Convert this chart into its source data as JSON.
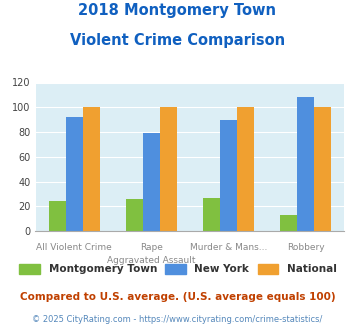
{
  "title_line1": "2018 Montgomery Town",
  "title_line2": "Violent Crime Comparison",
  "x_labels_top": [
    "",
    "Rape",
    "Murder & Mans...",
    ""
  ],
  "x_labels_bot": [
    "All Violent Crime",
    "Aggravated Assault",
    "",
    "Robbery"
  ],
  "montgomery_town": [
    24,
    26,
    27,
    13
  ],
  "new_york": [
    92,
    79,
    90,
    108
  ],
  "national": [
    100,
    100,
    100,
    100
  ],
  "colors": {
    "montgomery": "#80c040",
    "new_york": "#4f8fde",
    "national": "#f0a030"
  },
  "ylim": [
    0,
    120
  ],
  "yticks": [
    0,
    20,
    40,
    60,
    80,
    100,
    120
  ],
  "legend_labels": [
    "Montgomery Town",
    "New York",
    "National"
  ],
  "footnote1": "Compared to U.S. average. (U.S. average equals 100)",
  "footnote2": "© 2025 CityRating.com - https://www.cityrating.com/crime-statistics/",
  "title_color": "#1060c0",
  "xlabel_color": "#888888",
  "footnote1_color": "#c04000",
  "footnote2_color": "#5588bb",
  "plot_bg": "#dceef5",
  "grid_color": "#ffffff",
  "bar_width": 0.22
}
